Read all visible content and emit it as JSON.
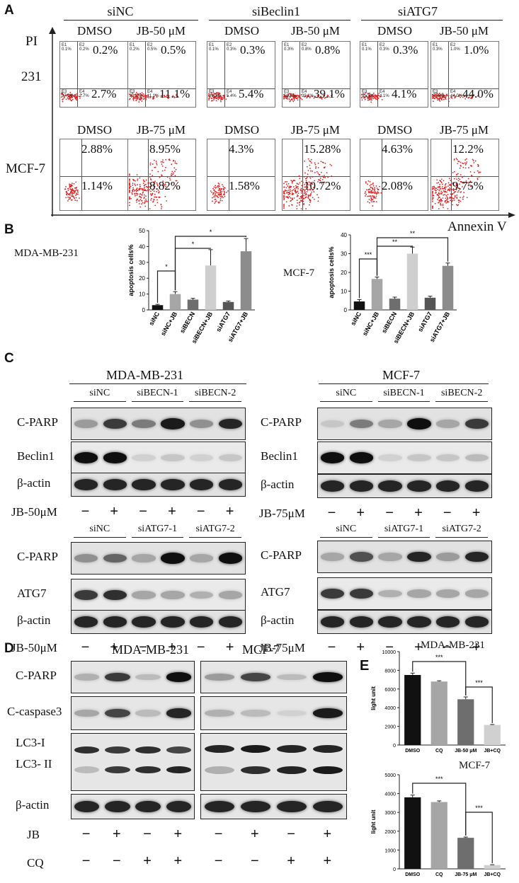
{
  "panels": {
    "a": "A",
    "b": "B",
    "c": "C",
    "d": "D",
    "e": "E"
  },
  "flow": {
    "groups": [
      "siNC",
      "siBeclin1",
      "siATG7"
    ],
    "y_axis_label": "PI",
    "x_axis_label": "Annexin V",
    "rows": [
      {
        "cell_line": "231",
        "plots": [
          {
            "condition": "DMSO",
            "ur": "0.2%",
            "lr": "2.7%",
            "q": {
              "e1": "0.1%",
              "e2": "0.2%",
              "e3": "97.0%",
              "e4": "2.7%"
            }
          },
          {
            "condition": "JB-50 μM",
            "ur": "0.5%",
            "lr": "11.1%",
            "q": {
              "e1": "0.2%",
              "e2": "0.5%",
              "e3": "88.2%",
              "e4": "11.1%"
            }
          },
          {
            "condition": "DMSO",
            "ur": "0.3%",
            "lr": "5.4%",
            "q": {
              "e1": "0.1%",
              "e2": "0.3%",
              "e3": "94.3%",
              "e4": "5.4%"
            }
          },
          {
            "condition": "JB-50 μM",
            "ur": "0.8%",
            "lr": "39.1%",
            "q": {
              "e1": "0.3%",
              "e2": "0.8%",
              "e3": "59.8%",
              "e4": "39.1%"
            }
          },
          {
            "condition": "DMSO",
            "ur": "0.3%",
            "lr": "4.1%",
            "q": {
              "e1": "0.1%",
              "e2": "0.3%",
              "e3": "95.5%",
              "e4": "4.1%"
            }
          },
          {
            "condition": "JB-50 μM",
            "ur": "1.0%",
            "lr": "44.0%",
            "q": {
              "e1": "0.3%",
              "e2": "1.0%",
              "e3": "54.8%",
              "e4": "44.0%"
            }
          }
        ]
      },
      {
        "cell_line": "MCF-7",
        "plots": [
          {
            "condition": "DMSO",
            "ur": "2.88%",
            "lr": "1.14%"
          },
          {
            "condition": "JB-75 μM",
            "ur": "8.95%",
            "lr": "8.82%"
          },
          {
            "condition": "DMSO",
            "ur": "4.3%",
            "lr": "1.58%"
          },
          {
            "condition": "JB-75 μM",
            "ur": "15.28%",
            "lr": "10.72%"
          },
          {
            "condition": "DMSO",
            "ur": "4.63%",
            "lr": "2.08%"
          },
          {
            "condition": "JB-75 μM",
            "ur": "12.2%",
            "lr": "9.75%"
          }
        ]
      }
    ],
    "colors": {
      "dots": "#e02020",
      "frame": "#777777"
    }
  },
  "chart_data": [
    {
      "type": "bar",
      "panel": "B",
      "title": "MDA-MB-231",
      "ylabel": "apoptosis cells%",
      "ylim": [
        0,
        50
      ],
      "yticks": [
        "0",
        "10",
        "20",
        "30",
        "40",
        "50"
      ],
      "categories": [
        "siNC",
        "siNC+JB",
        "siBECN",
        "siBECN+JB",
        "siATG7",
        "siATG7+JB"
      ],
      "values": [
        3,
        10,
        6.5,
        28,
        5,
        37
      ],
      "errors": [
        0.5,
        1.5,
        0.8,
        10,
        0.6,
        8
      ],
      "colors": [
        "#111111",
        "#a6a6a6",
        "#6e6e6e",
        "#cfcfcf",
        "#555555",
        "#8c8c8c"
      ],
      "significance": [
        {
          "from": 0,
          "to": 1,
          "label": "*"
        },
        {
          "from": 1,
          "to": 3,
          "label": "*"
        },
        {
          "from": 1,
          "to": 5,
          "label": "*"
        }
      ]
    },
    {
      "type": "bar",
      "panel": "B",
      "title": "MCF-7",
      "ylabel": "apoptosis cells%",
      "ylim": [
        0,
        40
      ],
      "yticks": [
        "0",
        "10",
        "20",
        "30",
        "40"
      ],
      "categories": [
        "siNC",
        "siNC+JB",
        "siBECN",
        "siBECN+JB",
        "siATG7",
        "siATG7+JB"
      ],
      "values": [
        4.5,
        16.5,
        6,
        30,
        6.5,
        23.5
      ],
      "errors": [
        1,
        1,
        0.8,
        3.5,
        0.8,
        1.5
      ],
      "colors": [
        "#111111",
        "#a6a6a6",
        "#6e6e6e",
        "#cfcfcf",
        "#555555",
        "#8c8c8c"
      ],
      "significance": [
        {
          "from": 0,
          "to": 1,
          "label": "***"
        },
        {
          "from": 1,
          "to": 3,
          "label": "**"
        },
        {
          "from": 1,
          "to": 5,
          "label": "**"
        }
      ]
    },
    {
      "type": "bar",
      "panel": "E",
      "title": "MDA-MB-231",
      "ylabel": "light unit",
      "ylim": [
        0,
        10000
      ],
      "yticks": [
        "0",
        "2000",
        "4000",
        "6000",
        "8000",
        "10000"
      ],
      "categories": [
        "DMSO",
        "CQ",
        "JB-50 μM",
        "JB+CQ"
      ],
      "values": [
        7500,
        6800,
        4900,
        2150
      ],
      "errors": [
        200,
        80,
        250,
        50
      ],
      "colors": [
        "#111111",
        "#a6a6a6",
        "#6e6e6e",
        "#d0d0d0"
      ],
      "significance": [
        {
          "from": 0,
          "to": 2,
          "label": "***"
        },
        {
          "from": 2,
          "to": 3,
          "label": "***"
        }
      ]
    },
    {
      "type": "bar",
      "panel": "E",
      "title": "MCF-7",
      "ylabel": "light unit",
      "ylim": [
        0,
        5000
      ],
      "yticks": [
        "0",
        "1000",
        "2000",
        "3000",
        "4000",
        "5000"
      ],
      "categories": [
        "DMSO",
        "CQ",
        "JB-75 μM",
        "JB+CQ"
      ],
      "values": [
        3800,
        3550,
        1650,
        200
      ],
      "errors": [
        120,
        60,
        40,
        20
      ],
      "colors": [
        "#111111",
        "#a6a6a6",
        "#6e6e6e",
        "#d0d0d0"
      ],
      "significance": [
        {
          "from": 0,
          "to": 2,
          "label": "***"
        },
        {
          "from": 2,
          "to": 3,
          "label": "***"
        }
      ]
    }
  ],
  "blots_c": {
    "top_left": {
      "cell_line": "MDA-MB-231",
      "groups": [
        "siNC",
        "siBECN-1",
        "siBECN-2"
      ],
      "rows": [
        "C-PARP",
        "Beclin1",
        "β-actin"
      ],
      "treatment": "JB-50μM"
    },
    "top_right": {
      "cell_line": "MCF-7",
      "groups": [
        "siNC",
        "siBECN-1",
        "siBECN-2"
      ],
      "rows": [
        "C-PARP",
        "Beclin1",
        "β-actin"
      ],
      "treatment": "JB-75μM"
    },
    "bottom_left": {
      "groups": [
        "siNC",
        "siATG7-1",
        "siATG7-2"
      ],
      "rows": [
        "C-PARP",
        "ATG7",
        "β-actin"
      ],
      "treatment": "JB-50μM"
    },
    "bottom_right": {
      "groups": [
        "siNC",
        "siATG7-1",
        "siATG7-2"
      ],
      "rows": [
        "C-PARP",
        "ATG7",
        "β-actin"
      ],
      "treatment": "JB-75μM"
    },
    "signs": [
      "−",
      "+",
      "−",
      "+",
      "−",
      "+"
    ]
  },
  "blots_d": {
    "left_title": "MDA-MB-231",
    "right_title": "MCF-7",
    "rows": [
      "C-PARP",
      "C-caspase3",
      "LC3-I",
      "LC3- II",
      "β-actin"
    ],
    "jb_label": "JB",
    "cq_label": "CQ",
    "jb_signs": [
      "−",
      "+",
      "−",
      "+"
    ],
    "cq_signs": [
      "−",
      "−",
      "+",
      "+"
    ]
  }
}
